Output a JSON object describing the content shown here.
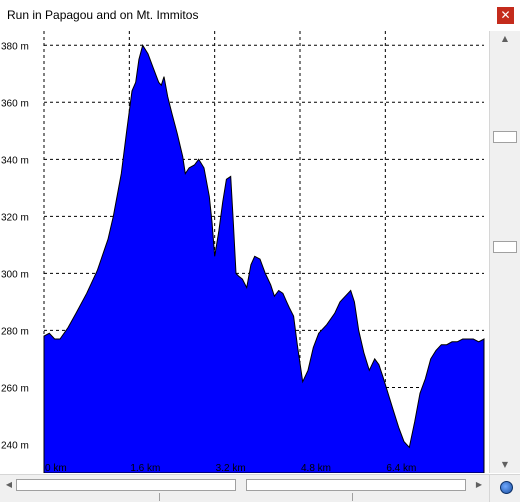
{
  "window": {
    "title": "Run in Papagou and on Mt. Immitos",
    "close_icon": "close-icon"
  },
  "colors": {
    "fill": "#0000ff",
    "outline": "#000000",
    "grid": "#000000",
    "close_button": "#c42b1c"
  },
  "chart_data": {
    "type": "area",
    "title": "Run in Papagou and on Mt. Immitos",
    "xlabel": "",
    "ylabel": "",
    "x_unit": "km",
    "y_unit": "m",
    "xlim": [
      0,
      8.25
    ],
    "ylim": [
      230,
      385
    ],
    "y_ticks": [
      240,
      260,
      280,
      300,
      320,
      340,
      360,
      380
    ],
    "x_ticks": [
      0,
      1.6,
      3.2,
      4.8,
      6.4
    ],
    "x_tick_labels": [
      "0 km",
      "1.6 km",
      "3.2 km",
      "4.8 km",
      "6.4 km"
    ],
    "y_tick_labels": [
      "240 m",
      "260 m",
      "280 m",
      "300 m",
      "320 m",
      "340 m",
      "360 m",
      "380 m"
    ],
    "grid": true,
    "series": [
      {
        "x": [
          0,
          0.1,
          0.2,
          0.3,
          0.45,
          0.6,
          0.8,
          1.0,
          1.2,
          1.3,
          1.45,
          1.55,
          1.65,
          1.72,
          1.78,
          1.85,
          1.95,
          2.05,
          2.15,
          2.2,
          2.25,
          2.32,
          2.4,
          2.5,
          2.6,
          2.65,
          2.72,
          2.82,
          2.9,
          3.0,
          3.1,
          3.15,
          3.2,
          3.28,
          3.35,
          3.42,
          3.5,
          3.55,
          3.6,
          3.65,
          3.72,
          3.8,
          3.88,
          3.95,
          4.05,
          4.15,
          4.25,
          4.32,
          4.4,
          4.48,
          4.55,
          4.6,
          4.68,
          4.75,
          4.85,
          4.95,
          5.05,
          5.15,
          5.3,
          5.45,
          5.55,
          5.65,
          5.75,
          5.82,
          5.9,
          6.0,
          6.1,
          6.2,
          6.28,
          6.35,
          6.45,
          6.55,
          6.65,
          6.75,
          6.85,
          6.95,
          7.05,
          7.15,
          7.25,
          7.35,
          7.45,
          7.55,
          7.65,
          7.75,
          7.85,
          7.95,
          8.05,
          8.15,
          8.25
        ],
        "y": [
          278,
          279,
          277,
          277,
          281,
          286,
          293,
          301,
          312,
          320,
          335,
          350,
          364,
          367,
          375,
          380,
          377,
          372,
          367,
          366,
          369,
          362,
          356,
          349,
          341,
          335,
          337,
          338,
          340,
          337,
          327,
          318,
          306,
          315,
          325,
          333,
          334,
          318,
          300,
          299,
          298,
          295,
          303,
          306,
          305,
          300,
          296,
          292,
          294,
          293,
          290,
          288,
          285,
          275,
          262,
          266,
          274,
          279,
          282,
          286,
          290,
          292,
          294,
          290,
          280,
          272,
          266,
          270,
          268,
          264,
          258,
          252,
          246,
          241,
          239,
          248,
          258,
          263,
          270,
          273,
          275,
          275,
          276,
          276,
          277,
          277,
          277,
          276,
          277
        ]
      }
    ]
  }
}
